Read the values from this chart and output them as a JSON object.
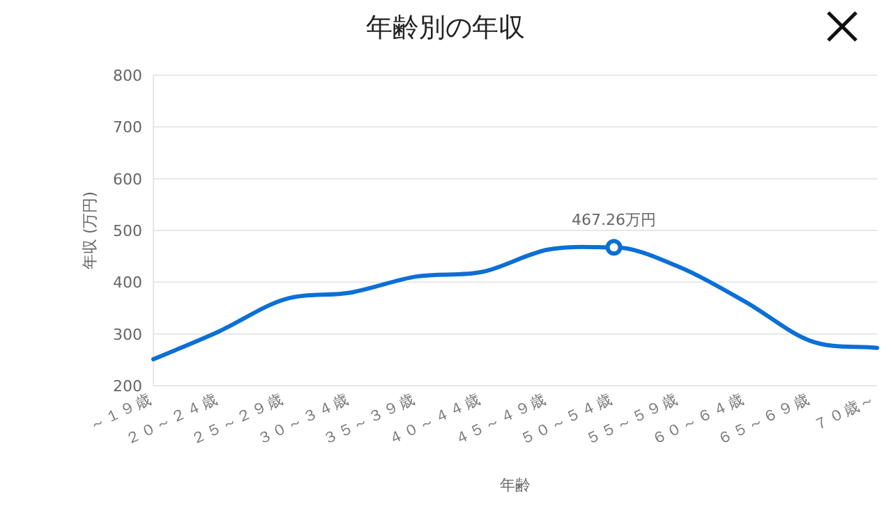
{
  "chart_data": {
    "type": "line",
    "title": "年齢別の年収",
    "xlabel": "年齢",
    "ylabel": "年収 (万円)",
    "categories": [
      "～１９歳",
      "２０～２４歳",
      "２５～２９歳",
      "３０～３４歳",
      "３５～３９歳",
      "４０～４４歳",
      "４５～４９歳",
      "５０～５４歳",
      "５５～５９歳",
      "６０～６４歳",
      "６５～６９歳",
      "７０歳～"
    ],
    "series": [
      {
        "color": "#0b6fd6",
        "values": [
          251,
          305,
          367,
          380,
          411,
          420,
          463,
          467.26,
          429,
          362,
          286,
          273
        ]
      }
    ],
    "ylim": [
      200,
      800
    ],
    "yticks": [
      200,
      300,
      400,
      500,
      600,
      700,
      800
    ],
    "grid": "y",
    "marker": "none",
    "annotations": [
      {
        "text": "467.26万円",
        "x": "５０～５４歳",
        "y": 467.26
      }
    ]
  }
}
